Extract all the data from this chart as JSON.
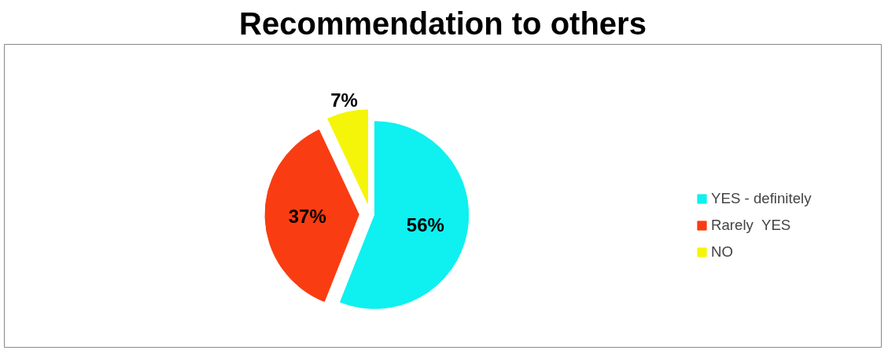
{
  "chart_data": {
    "type": "pie",
    "title": "Recommendation to others",
    "categories": [
      "YES - definitely",
      "Rarely  YES",
      "NO"
    ],
    "values": [
      56,
      37,
      7
    ],
    "colors": [
      "#0ff0f0",
      "#fa3c12",
      "#f5f50a"
    ],
    "value_labels": [
      "56%",
      "37%",
      "7%"
    ],
    "legend": "right"
  }
}
